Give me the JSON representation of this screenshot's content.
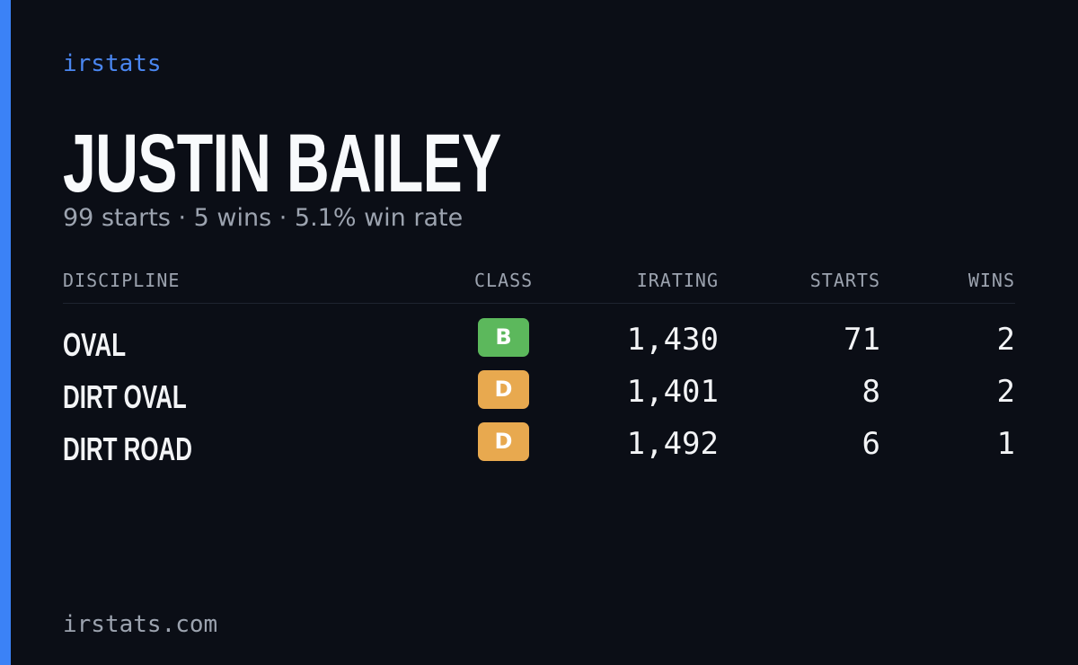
{
  "brand": "irstats",
  "player": {
    "name": "JUSTIN BAILEY",
    "summary": "99 starts · 5 wins · 5.1% win rate"
  },
  "table": {
    "headers": [
      "DISCIPLINE",
      "CLASS",
      "IRATING",
      "STARTS",
      "WINS"
    ],
    "rows": [
      {
        "discipline": "OVAL",
        "class": "B",
        "class_color": "#5cb85c",
        "irating": "1,430",
        "starts": 71,
        "wins": 2
      },
      {
        "discipline": "DIRT OVAL",
        "class": "D",
        "class_color": "#e8a94f",
        "irating": "1,401",
        "starts": 8,
        "wins": 2
      },
      {
        "discipline": "DIRT ROAD",
        "class": "D",
        "class_color": "#e8a94f",
        "irating": "1,492",
        "starts": 6,
        "wins": 1
      }
    ]
  },
  "footer": "irstats.com"
}
